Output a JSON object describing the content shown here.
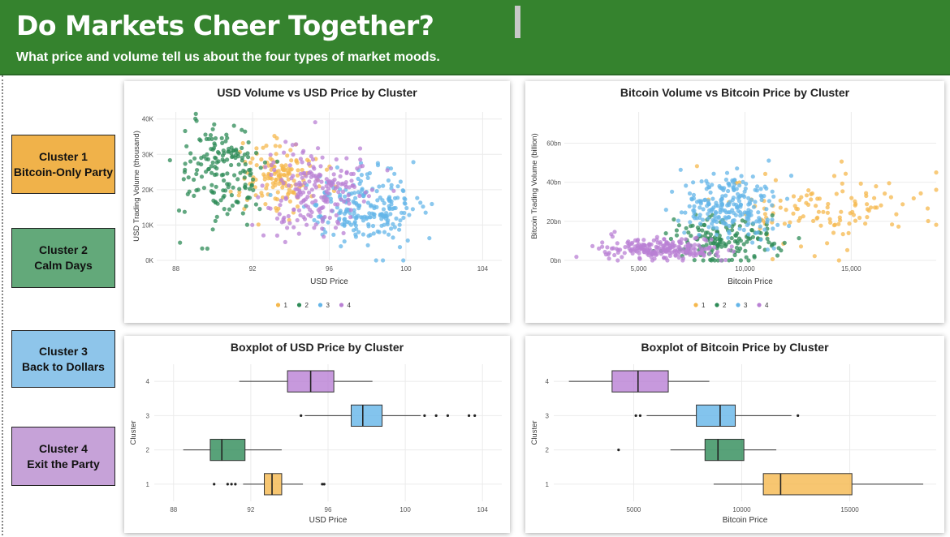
{
  "header": {
    "title": "Do Markets Cheer Together?",
    "subtitle": "What price and volume tell us about the four types of market moods."
  },
  "clusters": [
    {
      "line1": "Cluster 1",
      "line2": "Bitcoin-Only Party",
      "color": "#f0b24a"
    },
    {
      "line1": "Cluster 2",
      "line2": "Calm Days",
      "color": "#63a97a"
    },
    {
      "line1": "Cluster 3",
      "line2": "Back to Dollars",
      "color": "#8ec5ea"
    },
    {
      "line1": "Cluster 4",
      "line2": "Exit the Party",
      "color": "#c6a2d8"
    }
  ],
  "legend_colors": {
    "1": "#f5b84d",
    "2": "#2e8b57",
    "3": "#64b5e8",
    "4": "#b980d4"
  },
  "chart_data": [
    {
      "type": "scatter",
      "title": "USD Volume vs USD Price by Cluster",
      "xlabel": "USD Price",
      "ylabel": "USD Trading Volume (thousand)",
      "xlim": [
        87,
        105
      ],
      "ylim": [
        0,
        42000
      ],
      "xticks": [
        88,
        92,
        96,
        100,
        104
      ],
      "yticks": [
        0,
        10000,
        20000,
        30000,
        40000
      ],
      "ytick_labels": [
        "0K",
        "10K",
        "20K",
        "30K",
        "40K"
      ],
      "legend": [
        "1",
        "2",
        "3",
        "4"
      ],
      "legend_position": "bottom",
      "series": [
        {
          "name": "1",
          "x_mean": 93.5,
          "x_sd": 1.0,
          "y_mean": 24000,
          "y_sd": 5000,
          "n": 150
        },
        {
          "name": "2",
          "x_mean": 90.3,
          "x_sd": 1.1,
          "y_mean": 25000,
          "y_sd": 7000,
          "n": 170
        },
        {
          "name": "3",
          "x_mean": 97.8,
          "x_sd": 1.4,
          "y_mean": 15000,
          "y_sd": 5000,
          "n": 230
        },
        {
          "name": "4",
          "x_mean": 95.2,
          "x_sd": 1.3,
          "y_mean": 20000,
          "y_sd": 6500,
          "n": 200
        }
      ]
    },
    {
      "type": "scatter",
      "title": "Bitcoin Volume vs Bitcoin Price by Cluster",
      "xlabel": "Bitcoin Price",
      "ylabel": "Bitcoin Trading Volume (billion)",
      "xlim": [
        1500,
        19000
      ],
      "ylim": [
        0,
        76
      ],
      "xticks": [
        5000,
        10000,
        15000
      ],
      "xtick_labels": [
        "5,000",
        "10,000",
        "15,000"
      ],
      "yticks": [
        0,
        20,
        40,
        60
      ],
      "ytick_labels": [
        "0bn",
        "20bn",
        "40bn",
        "60bn"
      ],
      "legend": [
        "1",
        "2",
        "3",
        "4"
      ],
      "legend_position": "bottom",
      "series": [
        {
          "name": "1",
          "x_mean": 13500,
          "x_sd": 2500,
          "y_mean": 25,
          "y_sd": 10,
          "n": 120
        },
        {
          "name": "2",
          "x_mean": 8700,
          "x_sd": 1300,
          "y_mean": 10,
          "y_sd": 6,
          "n": 160
        },
        {
          "name": "3",
          "x_mean": 9300,
          "x_sd": 1200,
          "y_mean": 28,
          "y_sd": 9,
          "n": 230
        },
        {
          "name": "4",
          "x_mean": 6000,
          "x_sd": 1500,
          "y_mean": 6,
          "y_sd": 3,
          "n": 220
        }
      ]
    },
    {
      "type": "box",
      "title": "Boxplot of USD Price by Cluster",
      "xlabel": "USD Price",
      "ylabel": "Cluster",
      "xlim": [
        87,
        105
      ],
      "xticks": [
        88,
        92,
        96,
        100,
        104
      ],
      "categories": [
        "1",
        "2",
        "3",
        "4"
      ],
      "boxes": [
        {
          "name": "1",
          "min": 91.6,
          "q1": 92.7,
          "median": 93.1,
          "q3": 93.6,
          "max": 94.7,
          "outliers": [
            90.1,
            90.8,
            91.0,
            91.2,
            95.7,
            95.8
          ]
        },
        {
          "name": "2",
          "min": 88.5,
          "q1": 89.9,
          "median": 90.5,
          "q3": 91.7,
          "max": 93.6,
          "outliers": []
        },
        {
          "name": "3",
          "min": 94.8,
          "q1": 97.2,
          "median": 97.8,
          "q3": 98.8,
          "max": 100.8,
          "outliers": [
            94.6,
            101.0,
            101.6,
            102.2,
            103.3,
            103.6
          ]
        },
        {
          "name": "4",
          "min": 91.4,
          "q1": 93.9,
          "median": 95.1,
          "q3": 96.3,
          "max": 98.3,
          "outliers": []
        }
      ]
    },
    {
      "type": "box",
      "title": "Boxplot of Bitcoin Price by Cluster",
      "xlabel": "Bitcoin Price",
      "ylabel": "Cluster",
      "xlim": [
        1300,
        19000
      ],
      "xticks": [
        5000,
        10000,
        15000
      ],
      "categories": [
        "1",
        "2",
        "3",
        "4"
      ],
      "boxes": [
        {
          "name": "1",
          "min": 8700,
          "q1": 11000,
          "median": 11800,
          "q3": 15100,
          "max": 18400,
          "outliers": []
        },
        {
          "name": "2",
          "min": 6700,
          "q1": 8300,
          "median": 8900,
          "q3": 10100,
          "max": 11600,
          "outliers": [
            4300
          ]
        },
        {
          "name": "3",
          "min": 5600,
          "q1": 7900,
          "median": 9000,
          "q3": 9700,
          "max": 12300,
          "outliers": [
            5100,
            5300,
            12600
          ]
        },
        {
          "name": "4",
          "min": 2000,
          "q1": 4000,
          "median": 5200,
          "q3": 6600,
          "max": 8500,
          "outliers": []
        }
      ]
    }
  ]
}
